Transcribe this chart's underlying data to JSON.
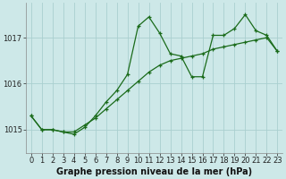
{
  "title": "Graphe pression niveau de la mer (hPa)",
  "background_color": "#cde8e8",
  "grid_color": "#aacfcf",
  "line_color": "#1a6b1a",
  "xlim": [
    -0.5,
    23.5
  ],
  "ylim": [
    1014.5,
    1017.75
  ],
  "yticks": [
    1015,
    1016,
    1017
  ],
  "xticks": [
    0,
    1,
    2,
    3,
    4,
    5,
    6,
    7,
    8,
    9,
    10,
    11,
    12,
    13,
    14,
    15,
    16,
    17,
    18,
    19,
    20,
    21,
    22,
    23
  ],
  "series_trend_x": [
    0,
    1,
    2,
    3,
    4,
    5,
    6,
    7,
    8,
    9,
    10,
    11,
    12,
    13,
    14,
    15,
    16,
    17,
    18,
    19,
    20,
    21,
    22,
    23
  ],
  "series_trend_y": [
    1015.3,
    1015.0,
    1015.0,
    1014.95,
    1014.95,
    1015.1,
    1015.25,
    1015.45,
    1015.65,
    1015.85,
    1016.05,
    1016.25,
    1016.4,
    1016.5,
    1016.55,
    1016.6,
    1016.65,
    1016.75,
    1016.8,
    1016.85,
    1016.9,
    1016.95,
    1017.0,
    1016.7
  ],
  "series_volatile_x": [
    0,
    1,
    2,
    3,
    4,
    5,
    6,
    7,
    8,
    9,
    10,
    11,
    12,
    13,
    14,
    15,
    16,
    17,
    18,
    19,
    20,
    21,
    22,
    23
  ],
  "series_volatile_y": [
    1015.3,
    1015.0,
    1015.0,
    1014.95,
    1014.9,
    1015.05,
    1015.3,
    1015.6,
    1015.85,
    1016.2,
    1017.25,
    1017.45,
    1017.1,
    1016.65,
    1016.6,
    1016.15,
    1016.15,
    1017.05,
    1017.05,
    1017.2,
    1017.5,
    1017.15,
    1017.05,
    1016.7
  ],
  "tick_fontsize": 6,
  "xlabel_fontsize": 7,
  "title_color": "#111111"
}
